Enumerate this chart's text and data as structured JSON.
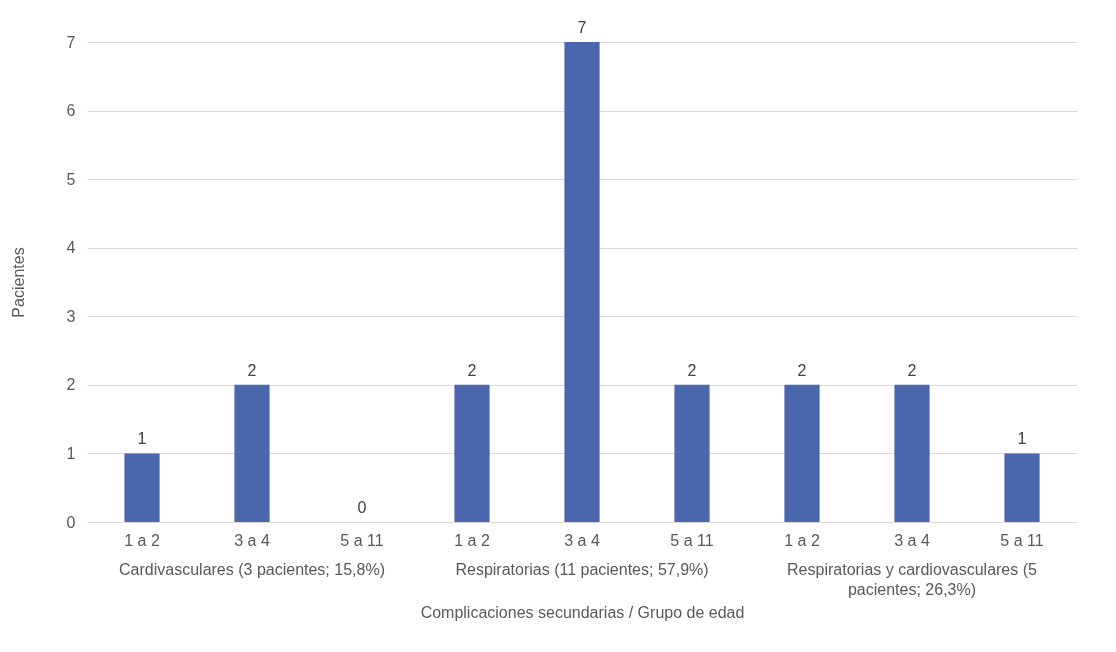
{
  "chart_data": {
    "type": "bar",
    "xlabel": "Complicaciones secundarias / Grupo de edad",
    "ylabel": "Pacientes",
    "categories": [
      "1 a 2",
      "3 a 4",
      "5 a 11",
      "1 a 2",
      "3 a 4",
      "5 a 11",
      "1 a 2",
      "3 a 4",
      "5 a 11"
    ],
    "values": [
      1,
      2,
      0,
      2,
      7,
      2,
      2,
      2,
      1
    ],
    "color": "#4a66ac",
    "annotations": [
      "Cardivasculares (3 pacientes; 15,8%)",
      "Respiratorias (11 pacientes; 57,9%)",
      "Respiratorias y cardiovasculares (5 pacientes; 26,3%)"
    ],
    "ylim": [
      0,
      7
    ],
    "yticks": [
      0,
      1,
      2,
      3,
      4,
      5,
      6,
      7
    ],
    "grid": "y",
    "data_labels": true
  }
}
